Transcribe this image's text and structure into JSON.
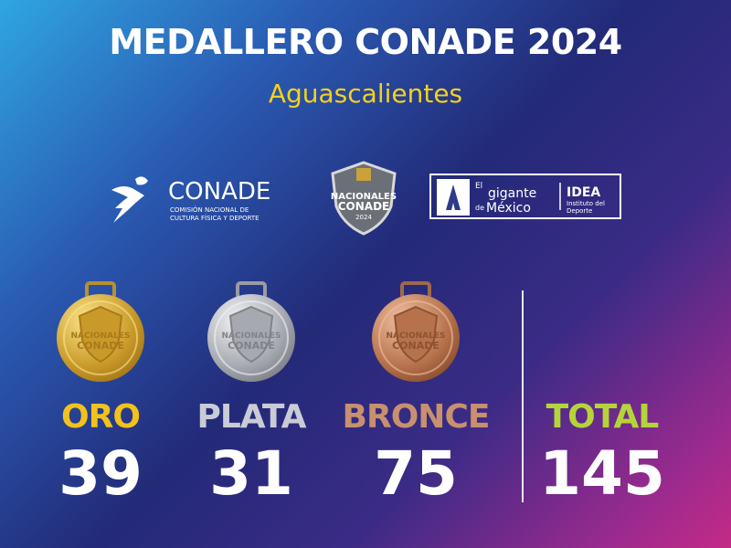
{
  "header": {
    "title": "MEDALLERO CONADE 2024",
    "subtitle": "Aguascalientes"
  },
  "logos": {
    "conade": {
      "name": "CONADE",
      "tagline": [
        "COMISIÓN NACIONAL DE",
        "CULTURA FÍSICA Y DEPORTE"
      ]
    },
    "nacionales": {
      "lines": [
        "NACIONALES",
        "CONADE",
        "2024"
      ]
    },
    "gigante": {
      "lines": [
        "El",
        "gigante",
        "de",
        "México"
      ],
      "idea": "IDEA",
      "idea_sub": [
        "Instituto del",
        "Deporte"
      ]
    }
  },
  "medal_face": [
    "NACIONALES",
    "CONADE"
  ],
  "medals": [
    {
      "label": "ORO",
      "count": 39
    },
    {
      "label": "PLATA",
      "count": 31
    },
    {
      "label": "BRONCE",
      "count": 75
    }
  ],
  "total": {
    "label": "TOTAL",
    "count": 145
  }
}
